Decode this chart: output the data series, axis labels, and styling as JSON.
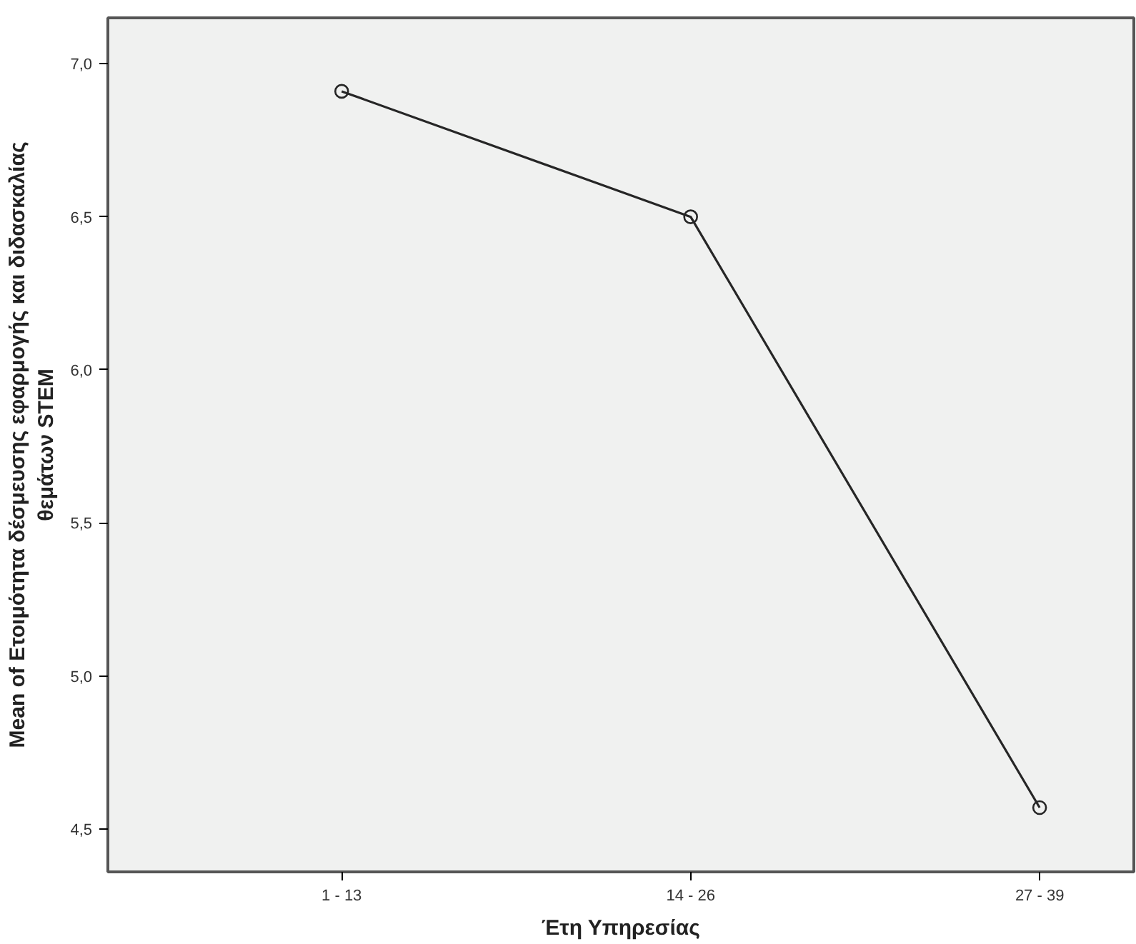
{
  "chart_data": {
    "type": "line",
    "xlabel": "Έτη Υπηρεσίας",
    "ylabel": "Mean of Ετοιμότητα δέσμευσης εφαρμογής και διδασκαλίας\nθεμάτων STEM",
    "categories": [
      "1 - 13",
      "14 - 26",
      "27 - 39"
    ],
    "series": [
      {
        "color": "#262626",
        "values": [
          6.91,
          6.5,
          4.57
        ]
      }
    ],
    "ylim": [
      4.36,
      7.15
    ],
    "yticks": [
      {
        "value": 4.5,
        "label": "4,5"
      },
      {
        "value": 5.0,
        "label": "5,0"
      },
      {
        "value": 5.5,
        "label": "5,5"
      },
      {
        "value": 6.0,
        "label": "6,0"
      },
      {
        "value": 6.5,
        "label": "6,5"
      },
      {
        "value": 7.0,
        "label": "7,0"
      }
    ],
    "marker": "circle",
    "line_style": "solid",
    "grid": false
  }
}
